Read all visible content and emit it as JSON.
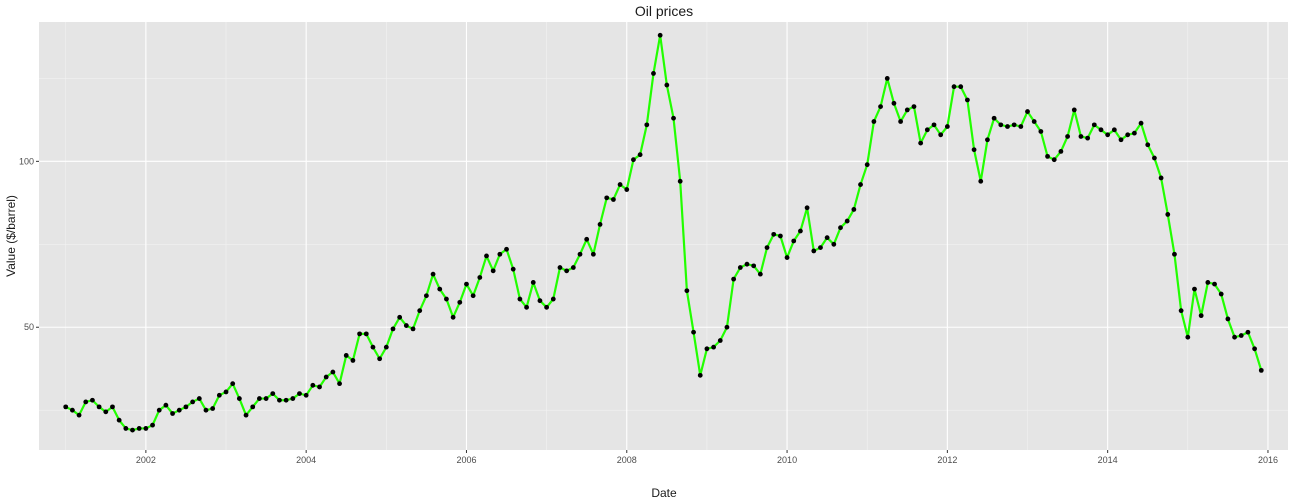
{
  "chart_data": {
    "type": "line",
    "title": "Oil prices",
    "xlabel": "Date",
    "ylabel": "Value ($/barrel)",
    "x_ticks": [
      "2002",
      "2004",
      "2006",
      "2008",
      "2010",
      "2012",
      "2014",
      "2016"
    ],
    "y_ticks": [
      "50",
      "100"
    ],
    "ylim": [
      13,
      142
    ],
    "xlim": [
      "2000-09",
      "2016-04"
    ],
    "grid": true,
    "line_color": "#22ff00",
    "point_color": "#000000",
    "panel_color": "#e5e5e5",
    "series": [
      {
        "x": [
          "2001-01",
          "2001-02",
          "2001-03",
          "2001-04",
          "2001-05",
          "2001-06",
          "2001-07",
          "2001-08",
          "2001-09",
          "2001-10",
          "2001-11",
          "2001-12",
          "2002-01",
          "2002-02",
          "2002-03",
          "2002-04",
          "2002-05",
          "2002-06",
          "2002-07",
          "2002-08",
          "2002-09",
          "2002-10",
          "2002-11",
          "2002-12",
          "2003-01",
          "2003-02",
          "2003-03",
          "2003-04",
          "2003-05",
          "2003-06",
          "2003-07",
          "2003-08",
          "2003-09",
          "2003-10",
          "2003-11",
          "2003-12",
          "2004-01",
          "2004-02",
          "2004-03",
          "2004-04",
          "2004-05",
          "2004-06",
          "2004-07",
          "2004-08",
          "2004-09",
          "2004-10",
          "2004-11",
          "2004-12",
          "2005-01",
          "2005-02",
          "2005-03",
          "2005-04",
          "2005-05",
          "2005-06",
          "2005-07",
          "2005-08",
          "2005-09",
          "2005-10",
          "2005-11",
          "2005-12",
          "2006-01",
          "2006-02",
          "2006-03",
          "2006-04",
          "2006-05",
          "2006-06",
          "2006-07",
          "2006-08",
          "2006-09",
          "2006-10",
          "2006-11",
          "2006-12",
          "2007-01",
          "2007-02",
          "2007-03",
          "2007-04",
          "2007-05",
          "2007-06",
          "2007-07",
          "2007-08",
          "2007-09",
          "2007-10",
          "2007-11",
          "2007-12",
          "2008-01",
          "2008-02",
          "2008-03",
          "2008-04",
          "2008-05",
          "2008-06",
          "2008-07",
          "2008-08",
          "2008-09",
          "2008-10",
          "2008-11",
          "2008-12",
          "2009-01",
          "2009-02",
          "2009-03",
          "2009-04",
          "2009-05",
          "2009-06",
          "2009-07",
          "2009-08",
          "2009-09",
          "2009-10",
          "2009-11",
          "2009-12",
          "2010-01",
          "2010-02",
          "2010-03",
          "2010-04",
          "2010-05",
          "2010-06",
          "2010-07",
          "2010-08",
          "2010-09",
          "2010-10",
          "2010-11",
          "2010-12",
          "2011-01",
          "2011-02",
          "2011-03",
          "2011-04",
          "2011-05",
          "2011-06",
          "2011-07",
          "2011-08",
          "2011-09",
          "2011-10",
          "2011-11",
          "2011-12",
          "2012-01",
          "2012-02",
          "2012-03",
          "2012-04",
          "2012-05",
          "2012-06",
          "2012-07",
          "2012-08",
          "2012-09",
          "2012-10",
          "2012-11",
          "2012-12",
          "2013-01",
          "2013-02",
          "2013-03",
          "2013-04",
          "2013-05",
          "2013-06",
          "2013-07",
          "2013-08",
          "2013-09",
          "2013-10",
          "2013-11",
          "2013-12",
          "2014-01",
          "2014-02",
          "2014-03",
          "2014-04",
          "2014-05",
          "2014-06",
          "2014-07",
          "2014-08",
          "2014-09",
          "2014-10",
          "2014-11",
          "2014-12",
          "2015-01",
          "2015-02",
          "2015-03",
          "2015-04",
          "2015-05",
          "2015-06",
          "2015-07",
          "2015-08",
          "2015-09",
          "2015-10",
          "2015-11",
          "2015-12"
        ],
        "values": [
          26,
          25,
          23.5,
          27.5,
          28,
          26,
          24.5,
          26,
          22,
          19.5,
          19,
          19.5,
          19.5,
          20.5,
          25,
          26.5,
          24,
          25,
          26,
          27.5,
          28.5,
          25,
          25.5,
          29.5,
          30.5,
          33,
          28.5,
          23.5,
          26,
          28.5,
          28.5,
          30,
          28,
          28,
          28.5,
          30,
          29.5,
          32.5,
          32,
          35,
          36.5,
          33,
          41.5,
          40,
          48,
          48,
          44,
          40.5,
          44,
          49.5,
          53,
          50.5,
          49.5,
          55,
          59.5,
          66,
          61.5,
          58.5,
          53,
          57.5,
          63,
          59.5,
          65,
          71.5,
          67,
          72,
          73.5,
          67.5,
          58.5,
          56,
          63.5,
          58,
          56,
          58.5,
          68,
          67,
          68,
          72,
          76.5,
          72,
          81,
          89,
          88.5,
          93,
          91.5,
          100.5,
          102,
          111,
          126.5,
          138,
          123,
          113,
          94,
          61,
          48.5,
          35.5,
          43.5,
          44,
          46,
          50,
          64.5,
          68,
          69,
          68.5,
          66,
          74,
          78,
          77.5,
          71,
          76,
          79,
          86,
          73,
          74,
          77,
          75,
          80,
          82,
          85.5,
          93,
          99,
          112,
          116.5,
          125,
          117.5,
          112,
          115.5,
          116.5,
          105.5,
          109.5,
          111,
          108,
          110.5,
          122.5,
          122.5,
          118.5,
          103.5,
          94,
          106.5,
          113,
          111,
          110.5,
          111,
          110.5,
          115,
          112,
          109,
          101.5,
          100.5,
          103,
          107.5,
          115.5,
          107.5,
          107,
          111,
          109.5,
          108,
          109.5,
          106.5,
          108,
          108.5,
          111.5,
          105,
          101,
          95,
          84,
          72,
          55,
          47,
          61.5,
          53.5,
          63.5,
          63,
          60,
          52.5,
          47,
          47.5,
          48.5,
          43.5,
          37
        ]
      }
    ]
  }
}
